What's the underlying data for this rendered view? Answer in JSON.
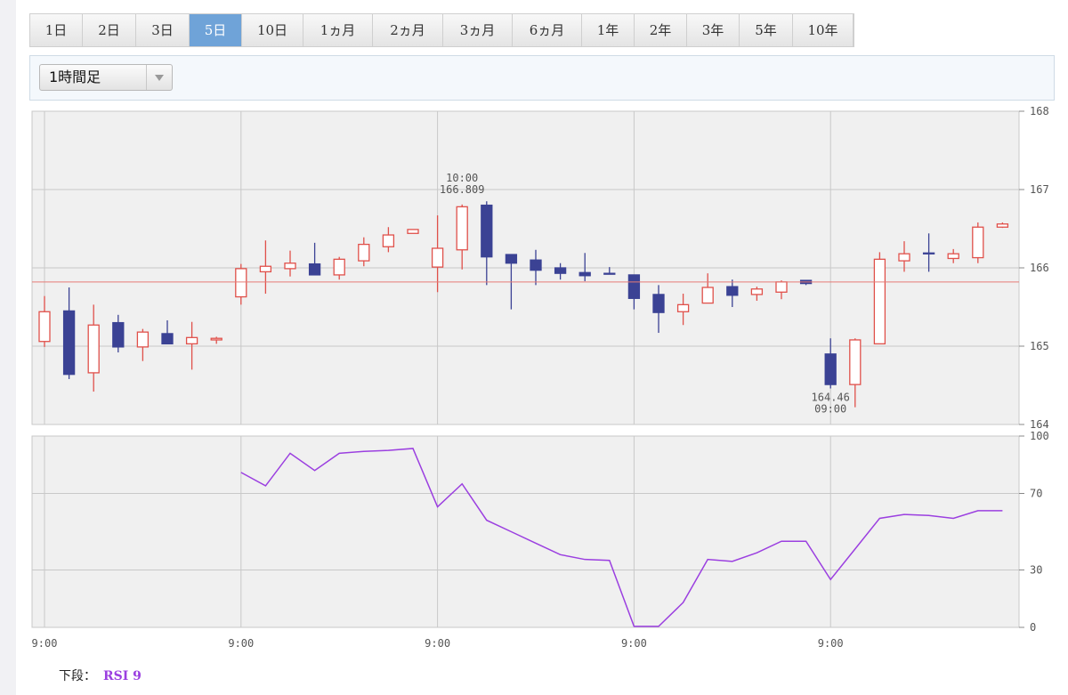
{
  "tabs": [
    {
      "label": "1日"
    },
    {
      "label": "2日"
    },
    {
      "label": "3日"
    },
    {
      "label": "5日",
      "active": true
    },
    {
      "label": "10日"
    },
    {
      "label": "1ヵ月"
    },
    {
      "label": "2ヵ月"
    },
    {
      "label": "3ヵ月"
    },
    {
      "label": "6ヵ月"
    },
    {
      "label": "1年"
    },
    {
      "label": "2年"
    },
    {
      "label": "3年"
    },
    {
      "label": "5年"
    },
    {
      "label": "10年"
    }
  ],
  "interval_select": "1時間足",
  "chart_data": [
    {
      "type": "candlestick",
      "open": [
        165.06,
        165.45,
        164.66,
        165.3,
        164.99,
        165.16,
        165.03,
        165.08,
        165.63,
        165.95,
        165.99,
        166.05,
        165.91,
        166.09,
        166.27,
        166.44,
        166.01,
        166.23,
        166.8,
        166.17,
        166.1,
        166.0,
        165.94,
        165.93,
        165.91,
        165.66,
        165.44,
        165.55,
        165.76,
        165.66,
        165.69,
        165.84,
        164.9,
        164.51,
        165.03,
        166.09,
        166.19,
        166.12,
        166.13,
        166.52
      ],
      "high": [
        165.64,
        165.75,
        165.53,
        165.4,
        165.22,
        165.33,
        165.31,
        165.12,
        166.05,
        166.35,
        166.22,
        166.32,
        166.14,
        166.39,
        166.52,
        166.49,
        166.67,
        166.809,
        166.85,
        166.17,
        166.23,
        166.06,
        166.19,
        166.01,
        165.91,
        165.78,
        165.67,
        165.93,
        165.85,
        165.76,
        165.84,
        165.84,
        165.1,
        165.1,
        166.2,
        166.34,
        166.44,
        166.24,
        166.58,
        166.58
      ],
      "low": [
        164.99,
        164.58,
        164.42,
        164.92,
        164.81,
        165.03,
        164.7,
        165.03,
        165.53,
        165.67,
        165.89,
        165.91,
        165.85,
        166.02,
        166.2,
        166.44,
        165.69,
        165.98,
        165.78,
        165.47,
        165.78,
        165.85,
        165.83,
        165.92,
        165.47,
        165.17,
        165.27,
        165.55,
        165.5,
        165.58,
        165.6,
        165.78,
        164.46,
        164.22,
        165.03,
        165.95,
        165.95,
        166.06,
        166.06,
        166.51
      ],
      "close": [
        165.44,
        164.64,
        165.27,
        164.99,
        165.18,
        165.03,
        165.11,
        165.1,
        165.99,
        166.02,
        166.06,
        165.91,
        166.11,
        166.3,
        166.42,
        166.49,
        166.25,
        166.78,
        166.14,
        166.06,
        165.97,
        165.93,
        165.9,
        165.92,
        165.61,
        165.43,
        165.53,
        165.75,
        165.65,
        165.73,
        165.82,
        165.8,
        164.51,
        165.08,
        166.11,
        166.18,
        166.18,
        166.18,
        166.52,
        166.56
      ],
      "up_color": "#e0504a",
      "down_color": "#3b4294",
      "ylim": [
        164,
        168
      ],
      "yticks": [
        164,
        165,
        166,
        167,
        168
      ],
      "grid": true,
      "reference_line": 165.82,
      "reference_color": "#e57b76",
      "annotations": [
        {
          "text": [
            "10:00",
            "166.809"
          ],
          "index": 17,
          "value": 166.809,
          "position": "above"
        },
        {
          "text": [
            "164.46",
            "09:00"
          ],
          "index": 32,
          "value": 164.46,
          "position": "below"
        }
      ]
    },
    {
      "type": "line",
      "categories": [
        "9:00",
        null,
        null,
        null,
        null,
        null,
        null,
        null,
        "9:00",
        null,
        null,
        null,
        null,
        null,
        null,
        null,
        "9:00",
        null,
        null,
        null,
        null,
        null,
        null,
        null,
        "9:00",
        null,
        null,
        null,
        null,
        null,
        null,
        null,
        "9:00",
        null,
        null,
        null,
        null,
        null,
        null,
        null
      ],
      "series": [
        {
          "name": "RSI 9",
          "color": "#9b3fe0",
          "values": [
            null,
            null,
            null,
            null,
            null,
            null,
            null,
            null,
            81,
            74,
            91,
            82,
            91,
            92,
            92.5,
            93.5,
            63,
            75,
            56,
            50,
            44,
            38,
            35.5,
            35,
            0.5,
            0.5,
            13,
            35.5,
            34.5,
            39,
            45,
            45,
            25,
            41,
            57,
            59,
            58.5,
            57,
            61,
            61
          ]
        }
      ],
      "ylim": [
        0,
        100
      ],
      "yticks": [
        0,
        30,
        70,
        100
      ],
      "grid": true,
      "legend_label": "下段："
    }
  ]
}
